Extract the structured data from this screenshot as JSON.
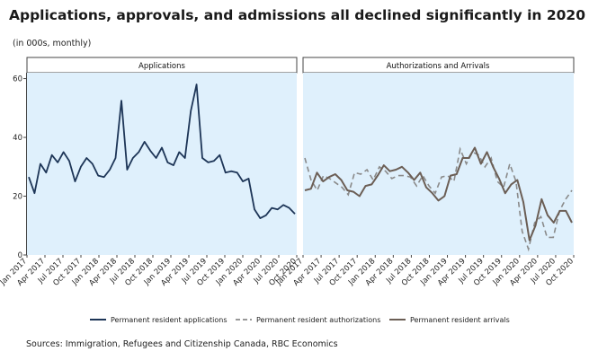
{
  "title": "Applications, approvals, and admissions all declined significantly in 2020",
  "subtitle": "(in 000s, monthly)",
  "source": "Sources: Immigration, Refugees and Citizenship Canada, RBC Economics",
  "colors": {
    "panel_bg": "#dff0fc",
    "applications": "#1d3557",
    "authorizations": "#7f7f7f",
    "arrivals": "#6b5e55"
  },
  "chart_data": [
    {
      "type": "line",
      "panel_title": "Applications",
      "ylim": [
        0,
        62
      ],
      "yticks": [
        0,
        20,
        40,
        60
      ],
      "x_tick_labels": [
        "Jan 2017",
        "Apr 2017",
        "Jul 2017",
        "Oct 2017",
        "Jan 2018",
        "Apr 2018",
        "Jul 2018",
        "Oct 2018",
        "Jan 2019",
        "Apr 2019",
        "Jul 2019",
        "Oct 2019",
        "Jan 2020",
        "Apr 2020",
        "Jul 2020",
        "Oct 2020"
      ],
      "series": [
        {
          "name": "Permanent resident applications",
          "style": "solid",
          "values": [
            26.5,
            21,
            31,
            28,
            34,
            31.5,
            35,
            32,
            25,
            30,
            33,
            31,
            27,
            26.5,
            29,
            33,
            52.5,
            29,
            33,
            35,
            38.5,
            35.5,
            33,
            36.5,
            31.5,
            30.5,
            35,
            33,
            49,
            58,
            33,
            31.5,
            32,
            34,
            28,
            28.5,
            28,
            25,
            26,
            15.5,
            12.5,
            13.5,
            16,
            15.5,
            17,
            16,
            14
          ]
        }
      ]
    },
    {
      "type": "line",
      "panel_title": "Authorizations and Arrivals",
      "ylim": [
        0,
        62
      ],
      "yticks": [
        0,
        20,
        40,
        60
      ],
      "x_tick_labels": [
        "Jan 2017",
        "Apr 2017",
        "Jul 2017",
        "Oct 2017",
        "Jan 2018",
        "Apr 2018",
        "Jul 2018",
        "Oct 2018",
        "Jan 2019",
        "Apr 2019",
        "Jul 2019",
        "Oct 2019",
        "Jan 2020",
        "Apr 2020",
        "Jul 2020",
        "Oct 2020"
      ],
      "series": [
        {
          "name": "Permanent resident authorizations",
          "style": "dashed",
          "values": [
            33,
            25.5,
            22,
            27,
            26,
            24.5,
            23,
            20.5,
            28,
            27.5,
            29,
            25.5,
            30,
            28.5,
            26,
            27,
            27,
            26.5,
            23.5,
            27,
            23.5,
            21,
            26.5,
            27,
            25,
            36,
            31,
            35,
            34,
            30,
            33,
            25,
            23,
            31,
            25,
            8,
            2,
            11,
            13,
            6,
            6,
            15,
            19,
            22
          ]
        },
        {
          "name": "Permanent resident arrivals",
          "style": "solid",
          "values": [
            22,
            22.5,
            28,
            25,
            26.5,
            27.5,
            25.5,
            22,
            21.5,
            20,
            23.5,
            24,
            27,
            30.5,
            28.5,
            29,
            30,
            28,
            25.5,
            28,
            23,
            21,
            18.5,
            20,
            27,
            27.5,
            33,
            33,
            36.5,
            31,
            35,
            30,
            26,
            21,
            24,
            25.5,
            18,
            5,
            10,
            19,
            13.5,
            11,
            15,
            15,
            11
          ]
        }
      ]
    }
  ]
}
